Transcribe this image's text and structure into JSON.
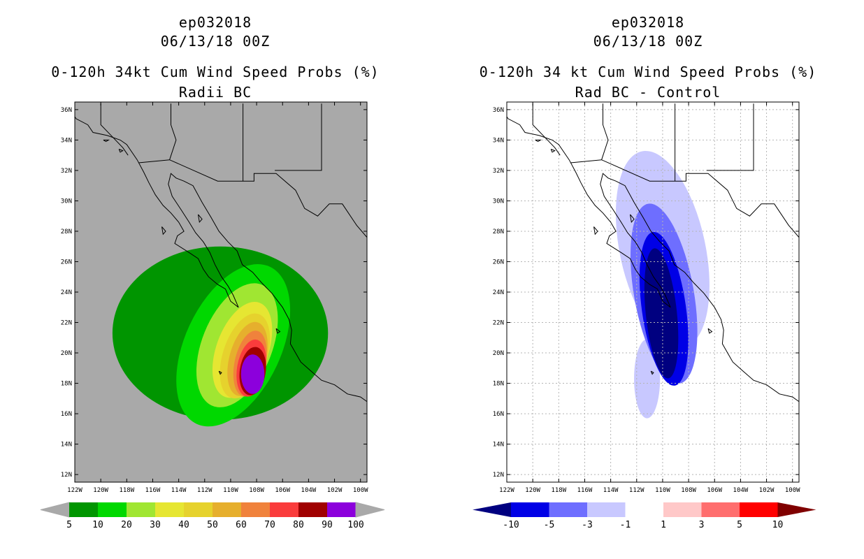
{
  "panels": [
    {
      "header1": "ep032018",
      "header2": "06/13/18 00Z",
      "title": "0-120h 34kt Cum Wind Speed Probs (%)",
      "subtitle": "Radii BC",
      "background": "#a9a9a9"
    },
    {
      "header1": "ep032018",
      "header2": "06/13/18 00Z",
      "title": "0-120h 34 kt Cum Wind Speed Probs (%)",
      "subtitle": "Rad BC - Control",
      "background": "#ffffff"
    }
  ],
  "chart_data": [
    {
      "type": "heatmap",
      "title": "0-120h 34kt Cum Wind Speed Probs (%)",
      "subtitle": "Radii BC",
      "x_tick_labels": [
        "122W",
        "120W",
        "118W",
        "116W",
        "114W",
        "112W",
        "110W",
        "108W",
        "106W",
        "104W",
        "102W",
        "100W"
      ],
      "y_tick_labels": [
        "12N",
        "14N",
        "16N",
        "18N",
        "20N",
        "22N",
        "24N",
        "26N",
        "28N",
        "30N",
        "32N",
        "34N",
        "36N"
      ],
      "xlim": [
        -122,
        -99.5
      ],
      "ylim": [
        11.5,
        36.5
      ],
      "legend_levels": [
        "5",
        "10",
        "20",
        "30",
        "40",
        "50",
        "60",
        "70",
        "80",
        "90",
        "100"
      ],
      "legend_colors": [
        "#009500",
        "#00d800",
        "#a0e632",
        "#e6e632",
        "#e6d22d",
        "#e6af2d",
        "#f0823c",
        "#fa3c3c",
        "#a00000",
        "#8c00dc"
      ],
      "contours": [
        {
          "level": 5,
          "color": "#009500",
          "center": [
            -110.8,
            21.3
          ],
          "semi_axes_deg": [
            8.3,
            5.7
          ],
          "rotation_deg": 0
        },
        {
          "level": 10,
          "color": "#00d800",
          "center": [
            -109.8,
            20.5
          ],
          "semi_axes_deg": [
            3.7,
            5.7
          ],
          "rotation_deg": 25
        },
        {
          "level": 20,
          "color": "#a0e632",
          "center": [
            -109.5,
            20.5
          ],
          "semi_axes_deg": [
            2.7,
            4.3
          ],
          "rotation_deg": 22
        },
        {
          "level": 30,
          "color": "#e6e632",
          "center": [
            -109.1,
            20.2
          ],
          "semi_axes_deg": [
            2.0,
            3.3
          ],
          "rotation_deg": 20
        },
        {
          "level": 40,
          "color": "#e6d22d",
          "center": [
            -108.9,
            19.8
          ],
          "semi_axes_deg": [
            1.7,
            2.9
          ],
          "rotation_deg": 18
        },
        {
          "level": 50,
          "color": "#e6af2d",
          "center": [
            -108.7,
            19.6
          ],
          "semi_axes_deg": [
            1.4,
            2.5
          ],
          "rotation_deg": 15
        },
        {
          "level": 60,
          "color": "#f0823c",
          "center": [
            -108.5,
            19.3
          ],
          "semi_axes_deg": [
            1.2,
            2.2
          ],
          "rotation_deg": 12
        },
        {
          "level": 70,
          "color": "#fa3c3c",
          "center": [
            -108.4,
            19.0
          ],
          "semi_axes_deg": [
            1.1,
            1.9
          ],
          "rotation_deg": 10
        },
        {
          "level": 80,
          "color": "#a00000",
          "center": [
            -108.3,
            18.8
          ],
          "semi_axes_deg": [
            1.0,
            1.6
          ],
          "rotation_deg": 8
        },
        {
          "level": 90,
          "color": "#8c00dc",
          "center": [
            -108.3,
            18.6
          ],
          "semi_axes_deg": [
            0.9,
            1.3
          ],
          "rotation_deg": 0
        }
      ]
    },
    {
      "type": "heatmap",
      "title": "0-120h 34 kt Cum Wind Speed Probs (%)",
      "subtitle": "Rad BC - Control",
      "x_tick_labels": [
        "122W",
        "120W",
        "118W",
        "116W",
        "114W",
        "112W",
        "110W",
        "108W",
        "106W",
        "104W",
        "102W",
        "100W"
      ],
      "y_tick_labels": [
        "12N",
        "14N",
        "16N",
        "18N",
        "20N",
        "22N",
        "24N",
        "26N",
        "28N",
        "30N",
        "32N",
        "34N",
        "36N"
      ],
      "xlim": [
        -122,
        -99.5
      ],
      "ylim": [
        11.5,
        36.5
      ],
      "legend_levels": [
        "-10",
        "-5",
        "-3",
        "-1",
        "1",
        "3",
        "5",
        "10"
      ],
      "legend_colors": [
        "#000080",
        "#0000e6",
        "#6e6eff",
        "#c8c8ff",
        "#ffffff",
        "#ffc8c8",
        "#ff6e6e",
        "#ff0000",
        "#800000"
      ],
      "contours": [
        {
          "level": -1,
          "color": "#c8c8ff",
          "center": [
            -110.0,
            26.8
          ],
          "semi_axes_deg": [
            3.3,
            6.6
          ],
          "rotation_deg": -12
        },
        {
          "level": -1,
          "color": "#c8c8ff",
          "center": [
            -111.2,
            18.3
          ],
          "semi_axes_deg": [
            1.0,
            2.6
          ],
          "rotation_deg": 0
        },
        {
          "level": -3,
          "color": "#6e6eff",
          "center": [
            -109.9,
            23.9
          ],
          "semi_axes_deg": [
            2.3,
            6.0
          ],
          "rotation_deg": -10
        },
        {
          "level": -5,
          "color": "#0000e6",
          "center": [
            -109.9,
            22.9
          ],
          "semi_axes_deg": [
            1.7,
            5.1
          ],
          "rotation_deg": -8
        },
        {
          "level": -10,
          "color": "#000080",
          "center": [
            -110.1,
            22.6
          ],
          "semi_axes_deg": [
            1.2,
            4.3
          ],
          "rotation_deg": -6
        }
      ]
    }
  ]
}
